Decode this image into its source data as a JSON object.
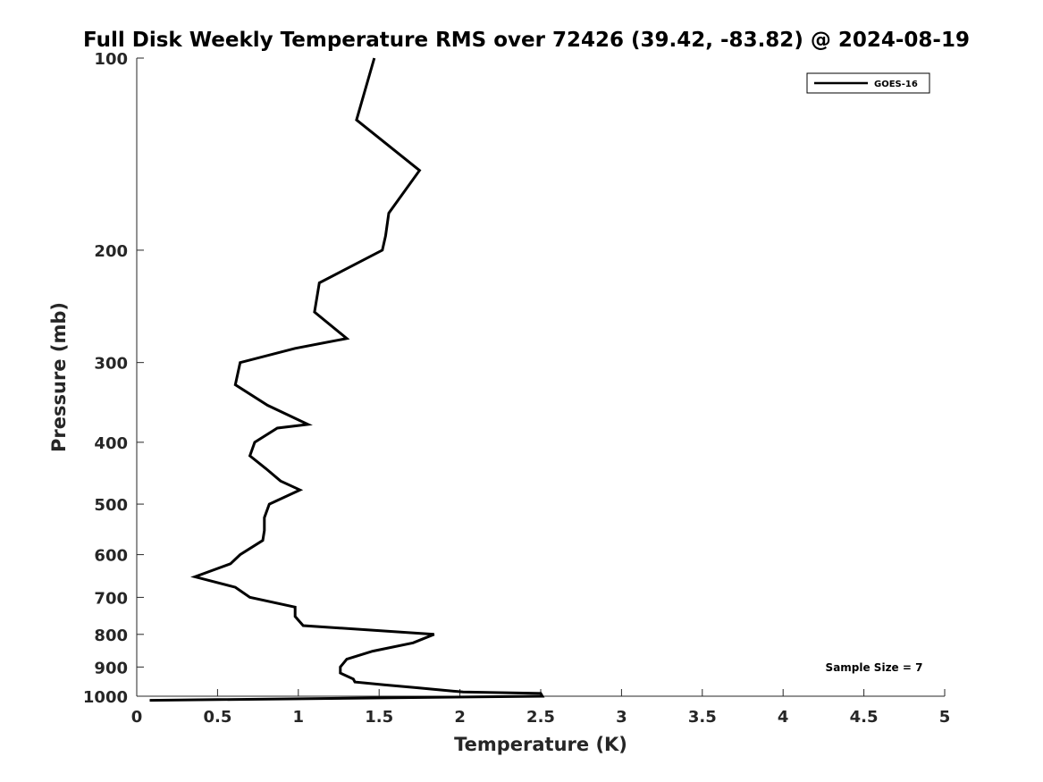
{
  "chart_data": {
    "type": "line",
    "title": "Full Disk Weekly Temperature RMS over 72426 (39.42, -83.82) @ 2024-08-19",
    "xlabel": "Temperature (K)",
    "ylabel": "Pressure (mb)",
    "xlim": [
      0,
      5
    ],
    "ylim": [
      100,
      1000
    ],
    "y_scale": "log",
    "y_reversed": true,
    "x_ticks": [
      "0",
      "0.5",
      "1",
      "1.5",
      "2",
      "2.5",
      "3",
      "3.5",
      "4",
      "4.5",
      "5"
    ],
    "y_ticks": [
      "100",
      "200",
      "300",
      "400",
      "500",
      "600",
      "700",
      "800",
      "900",
      "1000"
    ],
    "grid": false,
    "legend_position": "top-right",
    "series": [
      {
        "name": "GOES-16",
        "color": "#000000",
        "x": [
          1.47,
          1.36,
          1.75,
          1.56,
          1.54,
          1.52,
          1.13,
          1.1,
          1.3,
          0.98,
          0.64,
          0.61,
          0.81,
          1.06,
          0.87,
          0.73,
          0.7,
          0.8,
          0.89,
          1.01,
          0.82,
          0.79,
          0.79,
          0.78,
          0.64,
          0.58,
          0.36,
          0.61,
          0.7,
          0.98,
          0.98,
          1.03,
          1.84,
          1.71,
          1.46,
          1.3,
          1.26,
          1.26,
          1.34,
          1.35,
          1.53,
          1.74,
          2.02,
          2.5,
          2.51,
          0.08
        ],
        "y": [
          100,
          125,
          150,
          175,
          190,
          200,
          225,
          250,
          275,
          285,
          300,
          325,
          350,
          375,
          380,
          400,
          420,
          440,
          460,
          475,
          500,
          525,
          550,
          570,
          600,
          620,
          650,
          675,
          700,
          725,
          750,
          775,
          800,
          825,
          850,
          875,
          900,
          920,
          940,
          950,
          960,
          970,
          985,
          990,
          1000,
          1015
        ]
      }
    ],
    "annotations": [
      "Sample Size = 7"
    ]
  }
}
